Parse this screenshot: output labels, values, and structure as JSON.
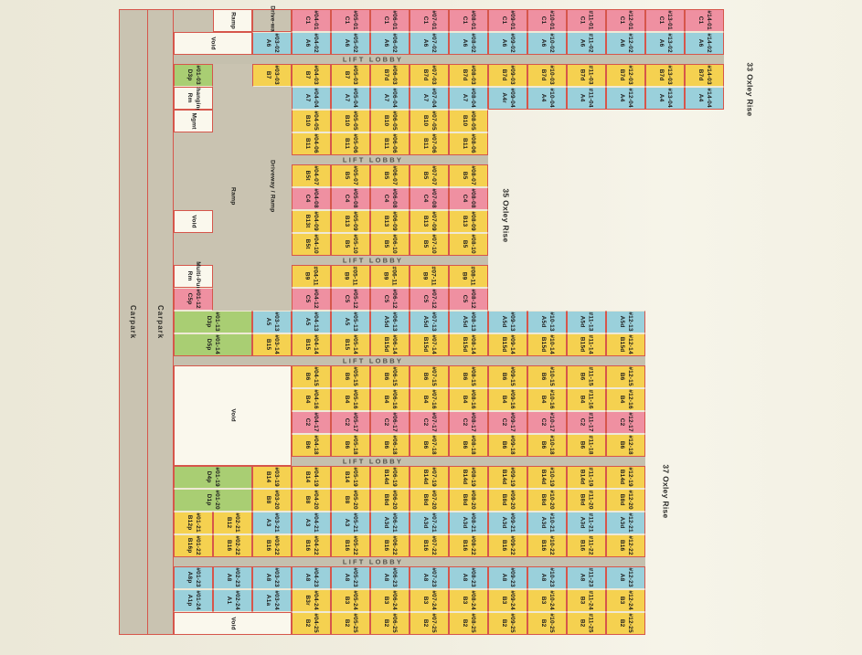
{
  "palette": {
    "yellow": "#f5d150",
    "pink": "#ef90a1",
    "blue": "#9ad0db",
    "green": "#a9ce73",
    "gray_zone": "#c9c3b1",
    "lobby_band": "#c5c0ae",
    "room_white": "#faf8ed",
    "red_line": "#d6564b",
    "page_bg": "#f0eddf",
    "text": "#1b1b1b"
  },
  "street_labels": [
    {
      "id": "33",
      "text": "33 Oxley Rise"
    },
    {
      "id": "35",
      "text": "35 Oxley Rise"
    },
    {
      "id": "37",
      "text": "37 Oxley Rise"
    }
  ],
  "area_labels": {
    "carpark": "Carpark",
    "lift_lobby": "LIFT LOBBY",
    "ramp": "Ramp",
    "driveway": "Drive-way",
    "driveway_ramp": "Driveway / Ramp",
    "void": "Void",
    "changing_rm": "Changing Rm",
    "mgmt": "Mgmt",
    "multi_purpose": "Multi-Pur. Rm"
  },
  "stacks": [
    {
      "stack": "01",
      "color": "pink",
      "cells": [
        {
          "no": "#04-01",
          "type": "C1"
        },
        {
          "no": "#05-01",
          "type": "C1"
        },
        {
          "no": "#06-01",
          "type": "C1"
        },
        {
          "no": "#07-01",
          "type": "C1"
        },
        {
          "no": "#08-01",
          "type": "C1"
        },
        {
          "no": "#09-01",
          "type": "C1"
        },
        {
          "no": "#10-01",
          "type": "C1"
        },
        {
          "no": "#11-01",
          "type": "C1"
        },
        {
          "no": "#12-01",
          "type": "C1"
        },
        {
          "no": "#13-01",
          "type": "C1"
        },
        {
          "no": "#14-01",
          "type": "C1"
        }
      ]
    },
    {
      "stack": "02",
      "color": "blue",
      "cells": [
        {
          "no": "#03-02",
          "type": "A6"
        },
        {
          "no": "#04-02",
          "type": "A6"
        },
        {
          "no": "#05-02",
          "type": "A6"
        },
        {
          "no": "#06-02",
          "type": "A6"
        },
        {
          "no": "#07-02",
          "type": "A6"
        },
        {
          "no": "#08-02",
          "type": "A6"
        },
        {
          "no": "#09-02",
          "type": "A6"
        },
        {
          "no": "#10-02",
          "type": "A6"
        },
        {
          "no": "#11-02",
          "type": "A6"
        },
        {
          "no": "#12-02",
          "type": "A6"
        },
        {
          "no": "#13-02",
          "type": "A6"
        },
        {
          "no": "#14-02",
          "type": "A6"
        }
      ]
    },
    {
      "stack": "03",
      "color": "yellow",
      "cells": [
        {
          "no": "#01-03",
          "type": "D3p",
          "color": "green"
        },
        {
          "no": "#03-03",
          "type": "B7"
        },
        {
          "no": "#04-03",
          "type": "B7"
        },
        {
          "no": "#05-03",
          "type": "B7"
        },
        {
          "no": "#06-03",
          "type": "B7d"
        },
        {
          "no": "#07-03",
          "type": "B7d"
        },
        {
          "no": "#08-03",
          "type": "B7d"
        },
        {
          "no": "#09-03",
          "type": "B7d"
        },
        {
          "no": "#10-03",
          "type": "B7d"
        },
        {
          "no": "#11-03",
          "type": "B7d"
        },
        {
          "no": "#12-03",
          "type": "B7d"
        },
        {
          "no": "#13-03",
          "type": "B7d"
        },
        {
          "no": "#14-03",
          "type": "B7d"
        }
      ]
    },
    {
      "stack": "04",
      "color": "blue",
      "cells": [
        {
          "no": "#04-04",
          "type": "A7"
        },
        {
          "no": "#05-04",
          "type": "A7"
        },
        {
          "no": "#06-04",
          "type": "A7"
        },
        {
          "no": "#07-04",
          "type": "A7"
        },
        {
          "no": "#08-04",
          "type": "A7"
        },
        {
          "no": "#09-04",
          "type": "A4r"
        },
        {
          "no": "#10-04",
          "type": "A4"
        },
        {
          "no": "#11-04",
          "type": "A4"
        },
        {
          "no": "#12-04",
          "type": "A4"
        },
        {
          "no": "#13-04",
          "type": "A4"
        },
        {
          "no": "#14-04",
          "type": "A4"
        }
      ]
    },
    {
      "stack": "05",
      "color": "yellow",
      "cells": [
        {
          "no": "#04-05",
          "type": "B10"
        },
        {
          "no": "#05-05",
          "type": "B10"
        },
        {
          "no": "#06-05",
          "type": "B10"
        },
        {
          "no": "#07-05",
          "type": "B10"
        },
        {
          "no": "#08-05",
          "type": "B10"
        }
      ]
    },
    {
      "stack": "06",
      "color": "yellow",
      "cells": [
        {
          "no": "#04-06",
          "type": "B11"
        },
        {
          "no": "#05-06",
          "type": "B11"
        },
        {
          "no": "#06-06",
          "type": "B11"
        },
        {
          "no": "#07-06",
          "type": "B11"
        },
        {
          "no": "#08-06",
          "type": "B11"
        }
      ]
    },
    {
      "stack": "07",
      "color": "yellow",
      "cells": [
        {
          "no": "#04-07",
          "type": "B5t"
        },
        {
          "no": "#05-07",
          "type": "B5"
        },
        {
          "no": "#06-07",
          "type": "B5"
        },
        {
          "no": "#07-07",
          "type": "B5"
        },
        {
          "no": "#08-07",
          "type": "B5"
        }
      ]
    },
    {
      "stack": "08",
      "color": "pink",
      "cells": [
        {
          "no": "#04-08",
          "type": "C4"
        },
        {
          "no": "#05-08",
          "type": "C4"
        },
        {
          "no": "#06-08",
          "type": "C4"
        },
        {
          "no": "#07-08",
          "type": "C4"
        },
        {
          "no": "#08-08",
          "type": "C4"
        }
      ]
    },
    {
      "stack": "09",
      "color": "yellow",
      "cells": [
        {
          "no": "#04-09",
          "type": "B13t"
        },
        {
          "no": "#05-09",
          "type": "B13"
        },
        {
          "no": "#06-09",
          "type": "B13"
        },
        {
          "no": "#07-09",
          "type": "B13"
        },
        {
          "no": "#08-09",
          "type": "B13"
        }
      ]
    },
    {
      "stack": "10",
      "color": "yellow",
      "cells": [
        {
          "no": "#04-10",
          "type": "B5t"
        },
        {
          "no": "#05-10",
          "type": "B5"
        },
        {
          "no": "#06-10",
          "type": "B5"
        },
        {
          "no": "#07-10",
          "type": "B5"
        },
        {
          "no": "#08-10",
          "type": "B5"
        }
      ]
    },
    {
      "stack": "11",
      "color": "yellow",
      "cells": [
        {
          "no": "#04-11",
          "type": "B9"
        },
        {
          "no": "#05-11",
          "type": "B9"
        },
        {
          "no": "#06-11",
          "type": "B9"
        },
        {
          "no": "#07-11",
          "type": "B9"
        },
        {
          "no": "#08-11",
          "type": "B9"
        }
      ]
    },
    {
      "stack": "12",
      "color": "pink",
      "cells": [
        {
          "no": "#01-12",
          "type": "C5p"
        },
        {
          "no": "#04-12",
          "type": "C5"
        },
        {
          "no": "#05-12",
          "type": "C5"
        },
        {
          "no": "#06-12",
          "type": "C5"
        },
        {
          "no": "#07-12",
          "type": "C5"
        },
        {
          "no": "#08-12",
          "type": "C5"
        }
      ]
    },
    {
      "stack": "13",
      "color": "blue",
      "cells": [
        {
          "no": "#01-13",
          "type": "D3p",
          "color": "green",
          "span": 2
        },
        {
          "no": "#03-13",
          "type": "A5"
        },
        {
          "no": "#04-13",
          "type": "A5"
        },
        {
          "no": "#05-13",
          "type": "A5"
        },
        {
          "no": "#06-13",
          "type": "A5d"
        },
        {
          "no": "#07-13",
          "type": "A5d"
        },
        {
          "no": "#08-13",
          "type": "A5d"
        },
        {
          "no": "#09-13",
          "type": "A5d"
        },
        {
          "no": "#10-13",
          "type": "A5d"
        },
        {
          "no": "#11-13",
          "type": "A5d"
        },
        {
          "no": "#12-13",
          "type": "A5d"
        }
      ]
    },
    {
      "stack": "14",
      "color": "yellow",
      "cells": [
        {
          "no": "#01-14",
          "type": "D5p",
          "color": "green",
          "span": 2
        },
        {
          "no": "#03-14",
          "type": "B15"
        },
        {
          "no": "#04-14",
          "type": "B15"
        },
        {
          "no": "#05-14",
          "type": "B15"
        },
        {
          "no": "#06-14",
          "type": "B15d"
        },
        {
          "no": "#07-14",
          "type": "B15d"
        },
        {
          "no": "#08-14",
          "type": "B15d"
        },
        {
          "no": "#09-14",
          "type": "B15d"
        },
        {
          "no": "#10-14",
          "type": "B15d"
        },
        {
          "no": "#11-14",
          "type": "B15d"
        },
        {
          "no": "#12-14",
          "type": "B15d"
        }
      ]
    },
    {
      "stack": "15",
      "color": "yellow",
      "cells": [
        {
          "no": "#04-15",
          "type": "B6"
        },
        {
          "no": "#05-15",
          "type": "B6"
        },
        {
          "no": "#06-15",
          "type": "B6"
        },
        {
          "no": "#07-15",
          "type": "B6"
        },
        {
          "no": "#08-15",
          "type": "B6"
        },
        {
          "no": "#09-15",
          "type": "B6"
        },
        {
          "no": "#10-15",
          "type": "B6"
        },
        {
          "no": "#11-15",
          "type": "B6"
        },
        {
          "no": "#12-15",
          "type": "B6"
        }
      ]
    },
    {
      "stack": "16",
      "color": "yellow",
      "cells": [
        {
          "no": "#04-16",
          "type": "B4"
        },
        {
          "no": "#05-16",
          "type": "B4"
        },
        {
          "no": "#06-16",
          "type": "B4"
        },
        {
          "no": "#07-16",
          "type": "B4"
        },
        {
          "no": "#08-16",
          "type": "B4"
        },
        {
          "no": "#09-16",
          "type": "B4"
        },
        {
          "no": "#10-16",
          "type": "B4"
        },
        {
          "no": "#11-16",
          "type": "B4"
        },
        {
          "no": "#12-16",
          "type": "B4"
        }
      ]
    },
    {
      "stack": "17",
      "color": "pink",
      "cells": [
        {
          "no": "#04-17",
          "type": "C2"
        },
        {
          "no": "#05-17",
          "type": "C2"
        },
        {
          "no": "#06-17",
          "type": "C2"
        },
        {
          "no": "#07-17",
          "type": "C2"
        },
        {
          "no": "#08-17",
          "type": "C2"
        },
        {
          "no": "#09-17",
          "type": "C2"
        },
        {
          "no": "#10-17",
          "type": "C2"
        },
        {
          "no": "#11-17",
          "type": "C2"
        },
        {
          "no": "#12-17",
          "type": "C2"
        }
      ]
    },
    {
      "stack": "18",
      "color": "yellow",
      "cells": [
        {
          "no": "#04-18",
          "type": "B6"
        },
        {
          "no": "#05-18",
          "type": "B6"
        },
        {
          "no": "#06-18",
          "type": "B6"
        },
        {
          "no": "#07-18",
          "type": "B6"
        },
        {
          "no": "#08-18",
          "type": "B6"
        },
        {
          "no": "#09-18",
          "type": "B6"
        },
        {
          "no": "#10-18",
          "type": "B6"
        },
        {
          "no": "#11-18",
          "type": "B6"
        },
        {
          "no": "#12-18",
          "type": "B6"
        }
      ]
    },
    {
      "stack": "19",
      "color": "yellow",
      "cells": [
        {
          "no": "#01-19",
          "type": "D4p",
          "color": "green",
          "span": 2
        },
        {
          "no": "#03-19",
          "type": "B14"
        },
        {
          "no": "#04-19",
          "type": "B14"
        },
        {
          "no": "#05-19",
          "type": "B14"
        },
        {
          "no": "#06-19",
          "type": "B14d"
        },
        {
          "no": "#07-19",
          "type": "B14d"
        },
        {
          "no": "#08-19",
          "type": "B14d"
        },
        {
          "no": "#09-19",
          "type": "B14d"
        },
        {
          "no": "#10-19",
          "type": "B14d"
        },
        {
          "no": "#11-19",
          "type": "B14d"
        },
        {
          "no": "#12-19",
          "type": "B14d"
        }
      ]
    },
    {
      "stack": "20",
      "color": "yellow",
      "cells": [
        {
          "no": "#01-20",
          "type": "D1p",
          "color": "green",
          "span": 2
        },
        {
          "no": "#03-20",
          "type": "B8"
        },
        {
          "no": "#04-20",
          "type": "B8"
        },
        {
          "no": "#05-20",
          "type": "B8"
        },
        {
          "no": "#06-20",
          "type": "B8d"
        },
        {
          "no": "#07-20",
          "type": "B8d"
        },
        {
          "no": "#08-20",
          "type": "B8d"
        },
        {
          "no": "#09-20",
          "type": "B8d"
        },
        {
          "no": "#10-20",
          "type": "B8d"
        },
        {
          "no": "#11-20",
          "type": "B8d"
        },
        {
          "no": "#12-20",
          "type": "B8d"
        }
      ]
    },
    {
      "stack": "21",
      "color": "blue",
      "cells": [
        {
          "no": "#01-21",
          "type": "B12p",
          "color": "yellow"
        },
        {
          "no": "#02-21",
          "type": "B12",
          "color": "yellow"
        },
        {
          "no": "#03-21",
          "type": "A3"
        },
        {
          "no": "#04-21",
          "type": "A3"
        },
        {
          "no": "#05-21",
          "type": "A3"
        },
        {
          "no": "#06-21",
          "type": "A3d"
        },
        {
          "no": "#07-21",
          "type": "A3d"
        },
        {
          "no": "#08-21",
          "type": "A3d"
        },
        {
          "no": "#09-21",
          "type": "A3d"
        },
        {
          "no": "#10-21",
          "type": "A3d"
        },
        {
          "no": "#11-21",
          "type": "A3d"
        },
        {
          "no": "#12-21",
          "type": "A3d"
        }
      ]
    },
    {
      "stack": "22",
      "color": "yellow",
      "cells": [
        {
          "no": "#01-22",
          "type": "B16p"
        },
        {
          "no": "#02-22",
          "type": "B16"
        },
        {
          "no": "#03-22",
          "type": "B16"
        },
        {
          "no": "#04-22",
          "type": "B16"
        },
        {
          "no": "#05-22",
          "type": "B16"
        },
        {
          "no": "#06-22",
          "type": "B16"
        },
        {
          "no": "#07-22",
          "type": "B16"
        },
        {
          "no": "#08-22",
          "type": "B16"
        },
        {
          "no": "#09-22",
          "type": "B16"
        },
        {
          "no": "#10-22",
          "type": "B16"
        },
        {
          "no": "#11-22",
          "type": "B16"
        },
        {
          "no": "#12-22",
          "type": "B16"
        }
      ]
    },
    {
      "stack": "23",
      "color": "blue",
      "cells": [
        {
          "no": "#01-23",
          "type": "A8p"
        },
        {
          "no": "#02-23",
          "type": "A8"
        },
        {
          "no": "#03-23",
          "type": "A8"
        },
        {
          "no": "#04-23",
          "type": "A8"
        },
        {
          "no": "#05-23",
          "type": "A8"
        },
        {
          "no": "#06-23",
          "type": "A8"
        },
        {
          "no": "#07-23",
          "type": "A8"
        },
        {
          "no": "#08-23",
          "type": "A8"
        },
        {
          "no": "#09-23",
          "type": "A8"
        },
        {
          "no": "#10-23",
          "type": "A8"
        },
        {
          "no": "#11-23",
          "type": "A8"
        },
        {
          "no": "#12-23",
          "type": "A8"
        }
      ]
    },
    {
      "stack": "24",
      "color": "blue",
      "cells": [
        {
          "no": "#01-24",
          "type": "A1p"
        },
        {
          "no": "#02-24",
          "type": "A1"
        },
        {
          "no": "#03-24",
          "type": "A1a"
        },
        {
          "no": "#04-24",
          "type": "B3r",
          "color": "yellow"
        },
        {
          "no": "#05-24",
          "type": "B3",
          "color": "yellow"
        },
        {
          "no": "#06-24",
          "type": "B3",
          "color": "yellow"
        },
        {
          "no": "#07-24",
          "type": "B3",
          "color": "yellow"
        },
        {
          "no": "#08-24",
          "type": "B3",
          "color": "yellow"
        },
        {
          "no": "#09-24",
          "type": "B3",
          "color": "yellow"
        },
        {
          "no": "#10-24",
          "type": "B3",
          "color": "yellow"
        },
        {
          "no": "#11-24",
          "type": "B3",
          "color": "yellow"
        },
        {
          "no": "#12-24",
          "type": "B3",
          "color": "yellow"
        }
      ]
    },
    {
      "stack": "25",
      "color": "yellow",
      "cells": [
        {
          "no": "#04-25",
          "type": "B2"
        },
        {
          "no": "#05-25",
          "type": "B2"
        },
        {
          "no": "#06-25",
          "type": "B2"
        },
        {
          "no": "#07-25",
          "type": "B2"
        },
        {
          "no": "#08-25",
          "type": "B2"
        },
        {
          "no": "#09-25",
          "type": "B2"
        },
        {
          "no": "#10-25",
          "type": "B2"
        },
        {
          "no": "#11-25",
          "type": "B2"
        },
        {
          "no": "#12-25",
          "type": "B2"
        }
      ]
    }
  ]
}
